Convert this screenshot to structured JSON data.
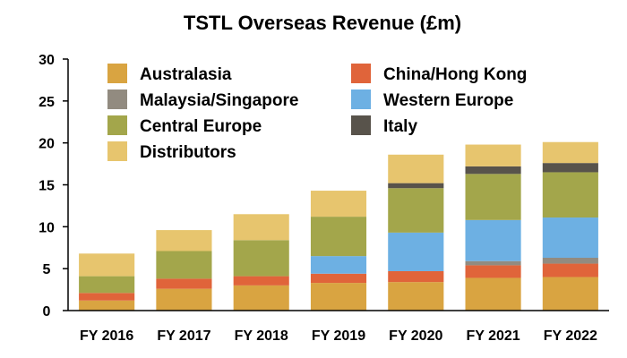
{
  "chart_data": {
    "type": "bar",
    "stacked": true,
    "title": "TSTL Overseas Revenue (£m)",
    "xlabel": "",
    "ylabel": "",
    "ylim": [
      0,
      30
    ],
    "yticks": [
      0,
      5,
      10,
      15,
      20,
      25,
      30
    ],
    "grid": false,
    "legend_position": "top-left, inside plot",
    "categories": [
      "FY 2016",
      "FY 2017",
      "FY 2018",
      "FY 2019",
      "FY 2020",
      "FY 2021",
      "FY 2022"
    ],
    "series": [
      {
        "name": "Australasia",
        "color": "#D9A441",
        "values": [
          1.2,
          2.6,
          3.0,
          3.3,
          3.4,
          3.9,
          4.0
        ]
      },
      {
        "name": "China/Hong Kong",
        "color": "#E0643A",
        "values": [
          0.9,
          1.2,
          1.1,
          1.1,
          1.3,
          1.5,
          1.6
        ]
      },
      {
        "name": "Malaysia/Singapore",
        "color": "#928B80",
        "values": [
          0.0,
          0.0,
          0.0,
          0.0,
          0.0,
          0.5,
          0.7
        ]
      },
      {
        "name": "Western Europe",
        "color": "#6DB0E3",
        "values": [
          0.0,
          0.0,
          0.0,
          2.1,
          4.6,
          4.9,
          4.8
        ]
      },
      {
        "name": "Central Europe",
        "color": "#A3A64B",
        "values": [
          2.0,
          3.3,
          4.3,
          4.7,
          5.3,
          5.5,
          5.4
        ]
      },
      {
        "name": "Italy",
        "color": "#58534B",
        "values": [
          0.0,
          0.0,
          0.0,
          0.0,
          0.6,
          0.9,
          1.1
        ]
      },
      {
        "name": "Distributors",
        "color": "#E7C56E",
        "values": [
          2.7,
          2.5,
          3.1,
          3.1,
          3.4,
          2.6,
          2.5
        ]
      }
    ]
  }
}
